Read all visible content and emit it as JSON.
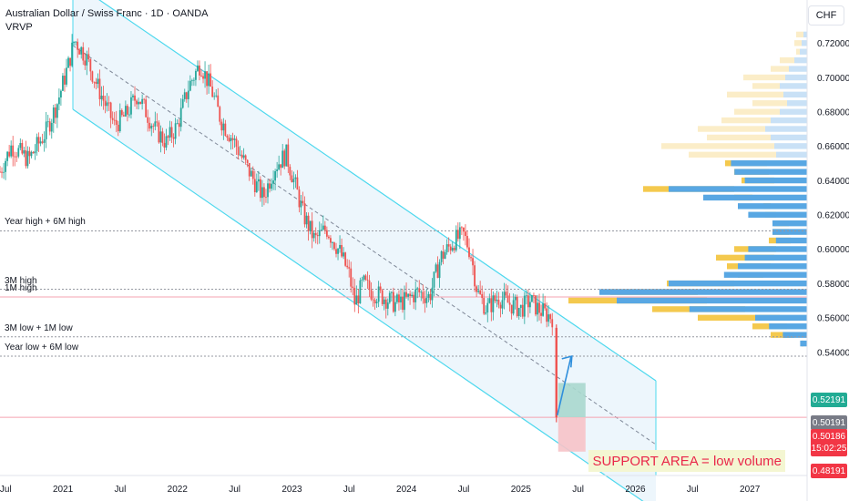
{
  "header": {
    "title": "Australian Dollar / Swiss Franc · 1D · OANDA",
    "indicator": "VRVP"
  },
  "currency_button": "CHF",
  "colors": {
    "channel_line": "#4dd8ee",
    "channel_fill": "#eaf4fc",
    "candle_up": "#26a69a",
    "candle_down": "#ef5350",
    "vp_blue": "#58a7e3",
    "vp_yellow": "#f4c94e",
    "vp_blue_light": "#c9e1f6",
    "vp_yellow_light": "#fbedc8",
    "support_text": "#e9284a",
    "tag_green": "#22ab94",
    "tag_gray": "#787b86",
    "tag_red": "#f23645"
  },
  "levels": [
    {
      "label": "Year high + 6M high",
      "price": 0.6105
    },
    {
      "label": "3M high",
      "price": 0.5765
    },
    {
      "label": "1M high",
      "price": 0.572
    },
    {
      "label": "3M low + 1M low",
      "price": 0.5488
    },
    {
      "label": "Year low + 6M low",
      "price": 0.5375
    }
  ],
  "support_label": "SUPPORT AREA = low volume",
  "price_tags": {
    "green": "0.52191",
    "gray": "0.50191",
    "red_price": "0.50186",
    "red_timer": "15:02:25",
    "red_bottom": "0.48191"
  },
  "chart_data": {
    "type": "line",
    "title": "Australian Dollar / Swiss Franc · 1D · OANDA",
    "y_axis": {
      "ticks": [
        "0.72000",
        "0.70000",
        "0.68000",
        "0.66000",
        "0.64000",
        "0.62000",
        "0.60000",
        "0.58000",
        "0.56000",
        "0.54000"
      ],
      "range": [
        0.468,
        0.745
      ]
    },
    "x_axis": {
      "ticks": [
        "Jul",
        "2021",
        "Jul",
        "2022",
        "Jul",
        "2023",
        "Jul",
        "2024",
        "Jul",
        "2025",
        "Jul",
        "2026",
        "Jul",
        "2027"
      ],
      "tick_dates": [
        2020.5,
        2021.0,
        2021.5,
        2022.0,
        2022.5,
        2023.0,
        2023.5,
        2024.0,
        2024.5,
        2025.0,
        2025.5,
        2026.0,
        2026.5,
        2027.0
      ],
      "range": [
        2020.45,
        2027.5
      ]
    },
    "series": [
      {
        "values_x": [
          2020.45,
          2020.55,
          2020.7,
          2020.85,
          2020.95,
          2021.05,
          2021.1,
          2021.2,
          2021.3,
          2021.45,
          2021.55,
          2021.65,
          2021.8,
          2021.9,
          2022.0,
          2022.1,
          2022.2,
          2022.3,
          2022.38,
          2022.5,
          2022.55,
          2022.65,
          2022.75,
          2022.85,
          2022.95,
          2023.05,
          2023.1,
          2023.2,
          2023.3,
          2023.42,
          2023.5,
          2023.55,
          2023.62,
          2023.7,
          2023.8,
          2023.9,
          2024.0,
          2024.1,
          2024.2,
          2024.3,
          2024.42,
          2024.5,
          2024.56,
          2024.62,
          2024.7,
          2024.8,
          2024.9,
          2025.0,
          2025.08,
          2025.15,
          2025.22,
          2025.28,
          2025.3
        ],
        "values_y": [
          0.645,
          0.66,
          0.652,
          0.668,
          0.685,
          0.708,
          0.722,
          0.712,
          0.695,
          0.672,
          0.678,
          0.69,
          0.67,
          0.662,
          0.672,
          0.695,
          0.708,
          0.692,
          0.675,
          0.662,
          0.655,
          0.642,
          0.63,
          0.648,
          0.655,
          0.632,
          0.62,
          0.605,
          0.612,
          0.598,
          0.585,
          0.568,
          0.58,
          0.575,
          0.572,
          0.568,
          0.57,
          0.575,
          0.572,
          0.595,
          0.605,
          0.608,
          0.598,
          0.575,
          0.565,
          0.572,
          0.568,
          0.565,
          0.57,
          0.565,
          0.562,
          0.56,
          0.5019
        ]
      }
    ],
    "volume_profile_note": "VRVP histogram on right side"
  }
}
